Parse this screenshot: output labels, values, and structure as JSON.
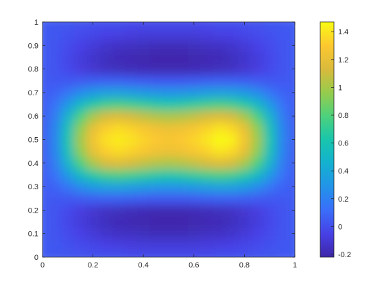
{
  "chart_data": {
    "type": "heatmap",
    "title": "",
    "xlabel": "",
    "ylabel": "",
    "xlim": [
      0,
      1
    ],
    "ylim": [
      0,
      1
    ],
    "x_ticks": [
      "0",
      "0.2",
      "0.4",
      "0.6",
      "0.8",
      "1"
    ],
    "y_ticks": [
      "0",
      "0.1",
      "0.2",
      "0.3",
      "0.4",
      "0.5",
      "0.6",
      "0.7",
      "0.8",
      "0.9",
      "1"
    ],
    "grid": false,
    "colormap": "parula",
    "colorbar": {
      "location": "right",
      "limits": [
        -0.22,
        1.47
      ],
      "ticks": [
        "-0.2",
        "0",
        "0.2",
        "0.4",
        "0.6",
        "0.8",
        "1",
        "1.2",
        "1.4"
      ]
    },
    "x": [
      0.0,
      0.05,
      0.1,
      0.15,
      0.2,
      0.25,
      0.3,
      0.35,
      0.4,
      0.45,
      0.5,
      0.55,
      0.6,
      0.65,
      0.7,
      0.75,
      0.8,
      0.85,
      0.9,
      0.95,
      1.0
    ],
    "y": [
      0.0,
      0.05,
      0.1,
      0.15,
      0.2,
      0.25,
      0.3,
      0.35,
      0.4,
      0.45,
      0.5,
      0.55,
      0.6,
      0.65,
      0.7,
      0.75,
      0.8,
      0.85,
      0.9,
      0.95,
      1.0
    ],
    "z": [
      [
        0.05,
        0.04,
        0.03,
        0.02,
        0.01,
        0.0,
        0.0,
        -0.01,
        -0.01,
        -0.01,
        -0.01,
        -0.01,
        -0.01,
        -0.01,
        0.0,
        0.0,
        0.01,
        0.02,
        0.03,
        0.04,
        0.05
      ],
      [
        0.05,
        0.03,
        0.01,
        -0.01,
        -0.03,
        -0.05,
        -0.06,
        -0.07,
        -0.08,
        -0.08,
        -0.08,
        -0.08,
        -0.08,
        -0.07,
        -0.06,
        -0.05,
        -0.03,
        -0.01,
        0.01,
        0.03,
        0.05
      ],
      [
        0.05,
        0.02,
        -0.01,
        -0.05,
        -0.09,
        -0.12,
        -0.14,
        -0.15,
        -0.16,
        -0.17,
        -0.17,
        -0.17,
        -0.16,
        -0.15,
        -0.14,
        -0.12,
        -0.09,
        -0.05,
        -0.01,
        0.02,
        0.05
      ],
      [
        0.05,
        0.02,
        -0.03,
        -0.08,
        -0.12,
        -0.16,
        -0.18,
        -0.19,
        -0.2,
        -0.21,
        -0.21,
        -0.21,
        -0.2,
        -0.19,
        -0.18,
        -0.16,
        -0.12,
        -0.08,
        -0.03,
        0.02,
        0.05
      ],
      [
        0.05,
        0.02,
        -0.02,
        -0.07,
        -0.11,
        -0.14,
        -0.16,
        -0.17,
        -0.18,
        -0.19,
        -0.19,
        -0.19,
        -0.18,
        -0.17,
        -0.16,
        -0.14,
        -0.11,
        -0.07,
        -0.02,
        0.02,
        0.05
      ],
      [
        0.05,
        0.04,
        0.04,
        0.05,
        0.06,
        0.07,
        0.07,
        0.06,
        0.05,
        0.04,
        0.04,
        0.04,
        0.05,
        0.06,
        0.07,
        0.07,
        0.06,
        0.05,
        0.04,
        0.04,
        0.05
      ],
      [
        0.05,
        0.08,
        0.16,
        0.25,
        0.32,
        0.36,
        0.37,
        0.35,
        0.32,
        0.3,
        0.29,
        0.3,
        0.32,
        0.35,
        0.37,
        0.36,
        0.32,
        0.25,
        0.16,
        0.08,
        0.05
      ],
      [
        0.05,
        0.14,
        0.32,
        0.52,
        0.66,
        0.74,
        0.77,
        0.74,
        0.7,
        0.66,
        0.64,
        0.66,
        0.7,
        0.74,
        0.77,
        0.74,
        0.66,
        0.52,
        0.32,
        0.14,
        0.05
      ],
      [
        0.05,
        0.19,
        0.48,
        0.78,
        1.0,
        1.12,
        1.15,
        1.12,
        1.07,
        1.03,
        1.01,
        1.03,
        1.07,
        1.12,
        1.15,
        1.12,
        1.0,
        0.78,
        0.48,
        0.19,
        0.05
      ],
      [
        0.05,
        0.22,
        0.58,
        0.94,
        1.19,
        1.32,
        1.36,
        1.33,
        1.28,
        1.24,
        1.22,
        1.24,
        1.28,
        1.33,
        1.39,
        1.35,
        1.2,
        0.94,
        0.58,
        0.22,
        0.05
      ],
      [
        0.05,
        0.23,
        0.61,
        0.99,
        1.25,
        1.38,
        1.42,
        1.39,
        1.34,
        1.3,
        1.28,
        1.3,
        1.34,
        1.4,
        1.47,
        1.44,
        1.26,
        0.99,
        0.61,
        0.23,
        0.05
      ],
      [
        0.05,
        0.22,
        0.58,
        0.94,
        1.19,
        1.32,
        1.36,
        1.33,
        1.28,
        1.24,
        1.22,
        1.24,
        1.28,
        1.33,
        1.39,
        1.35,
        1.2,
        0.94,
        0.58,
        0.22,
        0.05
      ],
      [
        0.05,
        0.19,
        0.48,
        0.78,
        1.0,
        1.12,
        1.15,
        1.12,
        1.07,
        1.03,
        1.01,
        1.03,
        1.07,
        1.12,
        1.15,
        1.12,
        1.0,
        0.78,
        0.48,
        0.19,
        0.05
      ],
      [
        0.05,
        0.14,
        0.32,
        0.52,
        0.66,
        0.74,
        0.77,
        0.74,
        0.7,
        0.66,
        0.64,
        0.66,
        0.7,
        0.74,
        0.77,
        0.74,
        0.66,
        0.52,
        0.32,
        0.14,
        0.05
      ],
      [
        0.05,
        0.08,
        0.16,
        0.25,
        0.32,
        0.36,
        0.37,
        0.35,
        0.32,
        0.3,
        0.29,
        0.3,
        0.32,
        0.35,
        0.37,
        0.36,
        0.32,
        0.25,
        0.16,
        0.08,
        0.05
      ],
      [
        0.05,
        0.04,
        0.04,
        0.05,
        0.06,
        0.07,
        0.07,
        0.06,
        0.05,
        0.04,
        0.04,
        0.04,
        0.05,
        0.06,
        0.07,
        0.07,
        0.06,
        0.05,
        0.04,
        0.04,
        0.05
      ],
      [
        0.05,
        0.02,
        -0.02,
        -0.07,
        -0.11,
        -0.14,
        -0.16,
        -0.17,
        -0.18,
        -0.19,
        -0.19,
        -0.19,
        -0.18,
        -0.17,
        -0.16,
        -0.14,
        -0.11,
        -0.07,
        -0.02,
        0.02,
        0.05
      ],
      [
        0.05,
        0.02,
        -0.03,
        -0.08,
        -0.12,
        -0.16,
        -0.18,
        -0.19,
        -0.2,
        -0.21,
        -0.21,
        -0.21,
        -0.2,
        -0.19,
        -0.18,
        -0.16,
        -0.12,
        -0.08,
        -0.03,
        0.02,
        0.05
      ],
      [
        0.05,
        0.02,
        -0.01,
        -0.05,
        -0.09,
        -0.12,
        -0.14,
        -0.15,
        -0.16,
        -0.17,
        -0.17,
        -0.17,
        -0.16,
        -0.15,
        -0.14,
        -0.12,
        -0.09,
        -0.05,
        -0.01,
        0.02,
        0.05
      ],
      [
        0.05,
        0.03,
        0.01,
        -0.01,
        -0.03,
        -0.05,
        -0.06,
        -0.07,
        -0.08,
        -0.08,
        -0.08,
        -0.08,
        -0.08,
        -0.07,
        -0.06,
        -0.05,
        -0.03,
        -0.01,
        0.01,
        0.03,
        0.05
      ],
      [
        0.05,
        0.04,
        0.03,
        0.02,
        0.01,
        0.0,
        0.0,
        -0.01,
        -0.01,
        -0.01,
        -0.01,
        -0.01,
        -0.01,
        -0.01,
        0.0,
        0.0,
        0.01,
        0.02,
        0.03,
        0.04,
        0.05
      ]
    ]
  }
}
